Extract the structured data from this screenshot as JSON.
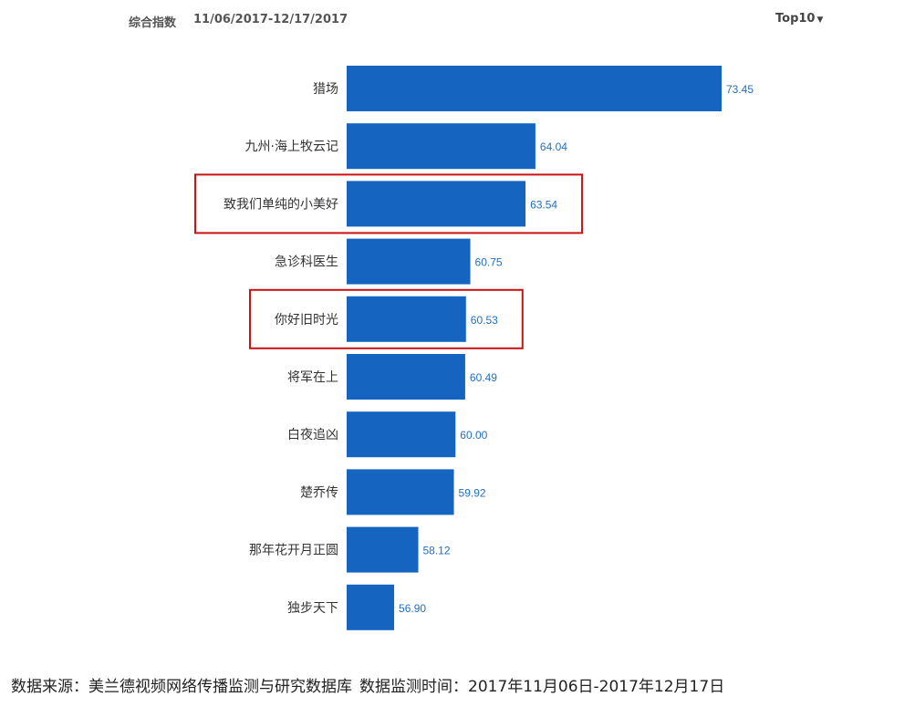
{
  "header": {
    "index_label": "综合指数",
    "date_range": "11/06/2017-12/17/2017",
    "top_selector": "Top10"
  },
  "chart_data": {
    "type": "bar",
    "orientation": "horizontal",
    "categories": [
      "猎场",
      "九州·海上牧云记",
      "致我们单纯的小美好",
      "急诊科医生",
      "你好旧时光",
      "将军在上",
      "白夜追凶",
      "楚乔传",
      "那年花开月正圆",
      "独步天下"
    ],
    "values": [
      73.45,
      64.04,
      63.54,
      60.75,
      60.53,
      60.49,
      60.0,
      59.92,
      58.12,
      56.9
    ],
    "value_labels": [
      "73.45",
      "64.04",
      "63.54",
      "60.75",
      "60.53",
      "60.49",
      "60.00",
      "59.92",
      "58.12",
      "56.90"
    ],
    "highlighted": [
      "致我们单纯的小美好",
      "你好旧时光"
    ],
    "bar_color": "#1565c0",
    "value_label_color": "#1f6fc5",
    "highlight_color": "#cc1111",
    "xlim": [
      54.5,
      73.45
    ],
    "grid": false,
    "legend": "none"
  },
  "footnote": {
    "source": "数据来源：美兰德视频网络传播监测与研究数据库",
    "monitor_time": "数据监测时间：2017年11月06日-2017年12月17日"
  }
}
